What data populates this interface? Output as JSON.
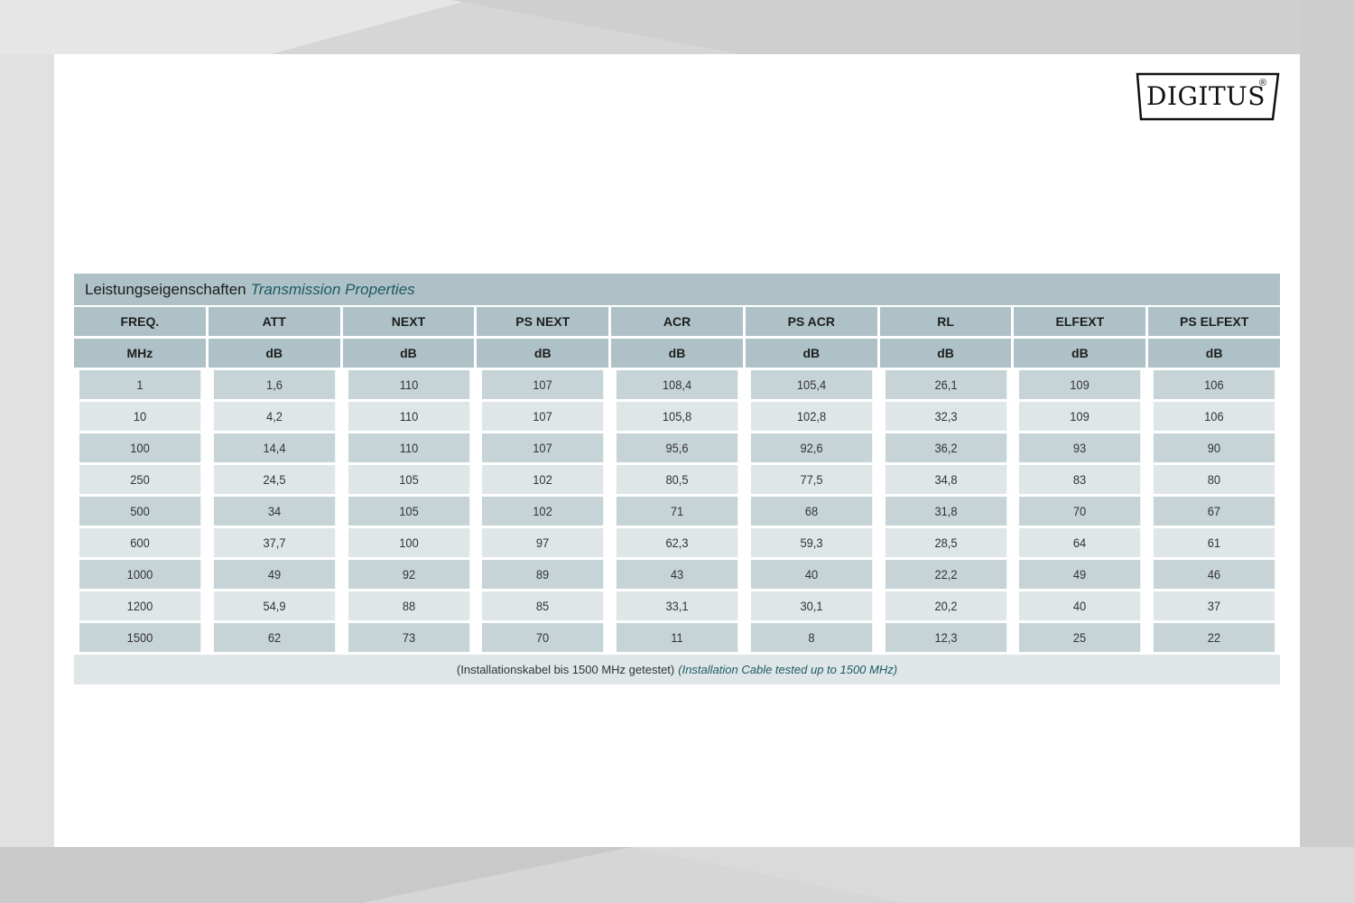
{
  "brand": {
    "logo_text": "DIGITUS",
    "logo_mark": "®"
  },
  "table": {
    "title_de": "Leistungseigenschaften",
    "title_en": "Transmission Properties",
    "headers": [
      "FREQ.",
      "ATT",
      "NEXT",
      "PS NEXT",
      "ACR",
      "PS ACR",
      "RL",
      "ELFEXT",
      "PS ELFEXT"
    ],
    "units": [
      "MHz",
      "dB",
      "dB",
      "dB",
      "dB",
      "dB",
      "dB",
      "dB",
      "dB"
    ],
    "rows": [
      [
        "1",
        "1,6",
        "110",
        "107",
        "108,4",
        "105,4",
        "26,1",
        "109",
        "106"
      ],
      [
        "10",
        "4,2",
        "110",
        "107",
        "105,8",
        "102,8",
        "32,3",
        "109",
        "106"
      ],
      [
        "100",
        "14,4",
        "110",
        "107",
        "95,6",
        "92,6",
        "36,2",
        "93",
        "90"
      ],
      [
        "250",
        "24,5",
        "105",
        "102",
        "80,5",
        "77,5",
        "34,8",
        "83",
        "80"
      ],
      [
        "500",
        "34",
        "105",
        "102",
        "71",
        "68",
        "31,8",
        "70",
        "67"
      ],
      [
        "600",
        "37,7",
        "100",
        "97",
        "62,3",
        "59,3",
        "28,5",
        "64",
        "61"
      ],
      [
        "1000",
        "49",
        "92",
        "89",
        "43",
        "40",
        "22,2",
        "49",
        "46"
      ],
      [
        "1200",
        "54,9",
        "88",
        "85",
        "33,1",
        "30,1",
        "20,2",
        "40",
        "37"
      ],
      [
        "1500",
        "62",
        "73",
        "70",
        "11",
        "8",
        "12,3",
        "25",
        "22"
      ]
    ],
    "footer_de": "(Installationskabel bis 1500 MHz getestet)",
    "footer_en": "(Installation Cable tested up to 1500 MHz)"
  },
  "colors": {
    "header_bg": "#aec1c6",
    "row_dark": "#c7d4d7",
    "row_light": "#dfe6e8",
    "accent_text": "#1c5a64"
  }
}
